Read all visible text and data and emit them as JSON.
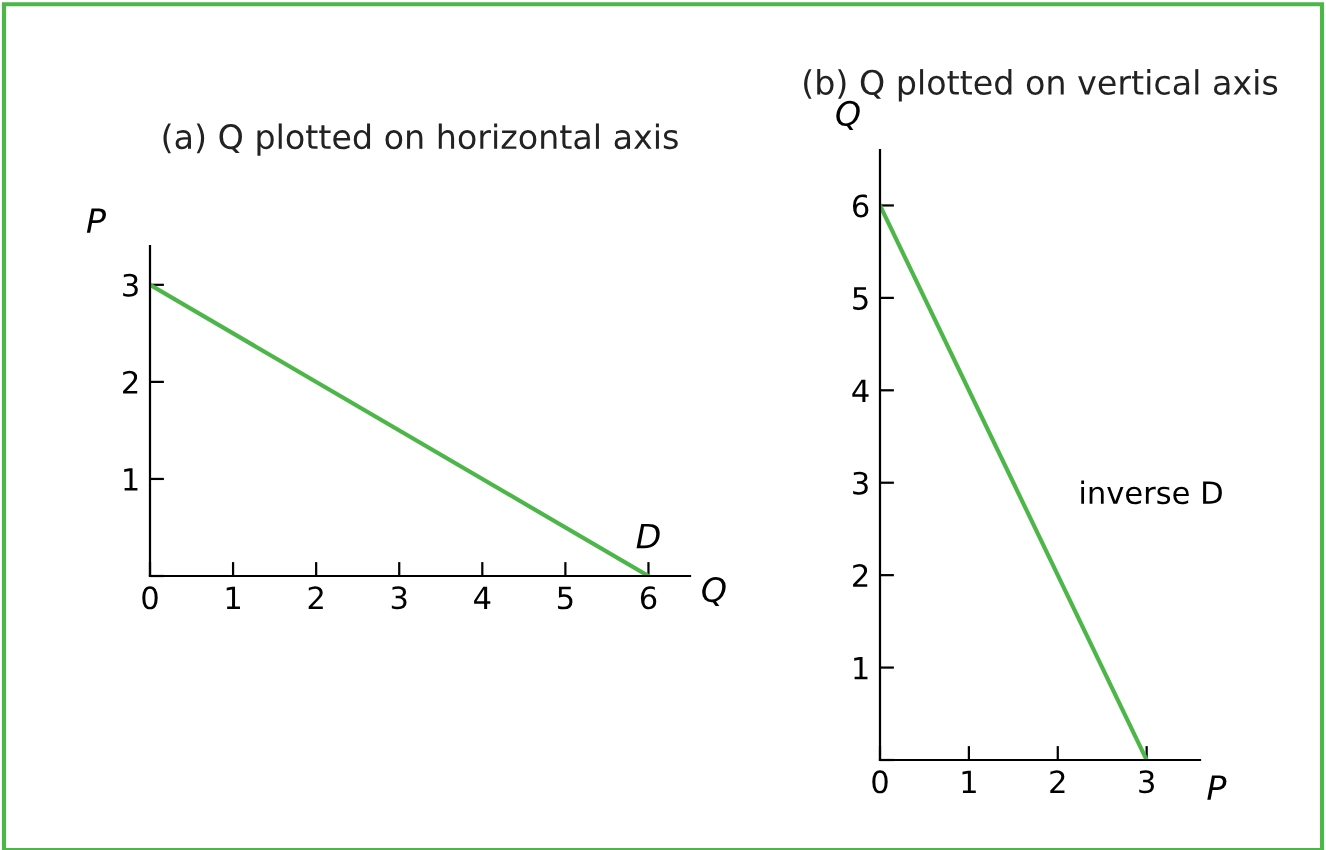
{
  "chart_data": [
    {
      "type": "line",
      "title": "(a) Q plotted on horizontal axis",
      "xlabel": "Q",
      "ylabel": "P",
      "x": [
        0,
        6
      ],
      "series": [
        {
          "color": "#4cb748",
          "values": [
            3,
            0
          ]
        }
      ],
      "xlim": [
        0,
        6.5
      ],
      "ylim": [
        0,
        3.4
      ],
      "xticks": [
        0,
        1,
        2,
        3,
        4,
        5,
        6
      ],
      "yticks": [
        {
          "value": 0,
          "label": null
        },
        1,
        2,
        3
      ],
      "annotations": [
        {
          "text": "D",
          "x": 6,
          "y": 0
        }
      ],
      "grid": false,
      "legend": false
    },
    {
      "type": "line",
      "title": "(b) Q plotted on vertical axis",
      "xlabel": "P",
      "ylabel": "Q",
      "x": [
        0,
        3
      ],
      "series": [
        {
          "color": "#4cb748",
          "values": [
            6,
            0
          ]
        }
      ],
      "xlim": [
        0,
        3.6
      ],
      "ylim": [
        0,
        6.6
      ],
      "xticks": [
        0,
        1,
        2,
        3
      ],
      "yticks": [
        {
          "value": 0,
          "label": null
        },
        1,
        2,
        3,
        4,
        5,
        6
      ],
      "annotations": [
        "inverse D"
      ],
      "grid": false,
      "legend": false
    }
  ]
}
